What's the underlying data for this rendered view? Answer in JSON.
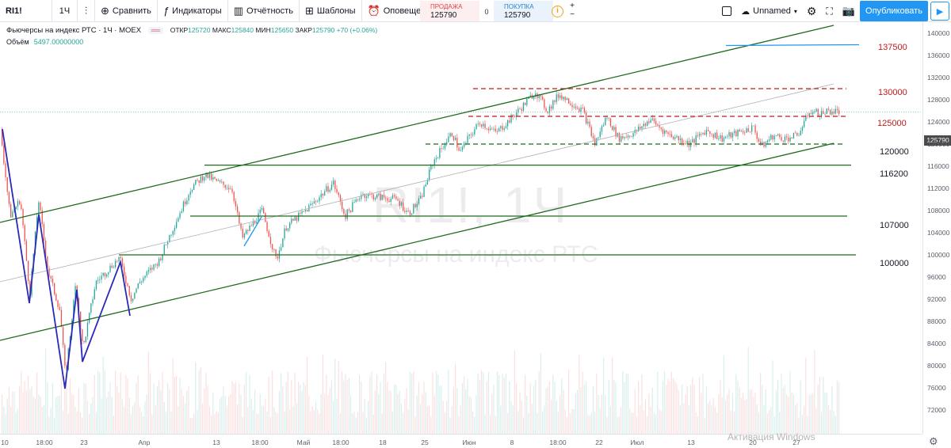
{
  "toolbar": {
    "symbol": "RI1!",
    "interval": "1Ч",
    "compare_label": "Сравнить",
    "indicators_label": "Индикаторы",
    "financials_label": "Отчётность",
    "templates_label": "Шаблоны",
    "alerts_label": "Оповещения",
    "trade": {
      "sell_label": "ПРОДАЖА",
      "sell_value": "125790",
      "spread": "0",
      "buy_label": "ПОКУПКА",
      "buy_value": "125790"
    },
    "layout_name": "Unnamed",
    "publish_label": "Опубликовать"
  },
  "legend": {
    "title": "Фьючерсы на индекс РТС · 1Ч · MOEX",
    "badge": "══",
    "open_label": "ОТКР",
    "open": "125720",
    "high_label": "МАКС",
    "high": "125840",
    "low_label": "МИН",
    "low": "125650",
    "close_label": "ЗАКР",
    "close": "125790",
    "change": "+70 (+0.06%)",
    "volume_label": "Объём",
    "volume": "5497.00000000"
  },
  "watermark": {
    "symbol_interval": "RI1!, 1Ч",
    "description": "Фьючерсы на индекс РТС"
  },
  "windows_notice": "Активация Windows",
  "price_scale": {
    "ticks": [
      "140000",
      "136000",
      "132000",
      "128000",
      "124000",
      "120000",
      "116000",
      "112000",
      "108000",
      "104000",
      "100000",
      "96000",
      "92000",
      "88000",
      "84000",
      "80000",
      "76000",
      "72000"
    ],
    "last_price": "125790"
  },
  "time_scale": {
    "ticks": [
      "10",
      "18:00",
      "23",
      "Апр",
      "13",
      "18:00",
      "Май",
      "18:00",
      "18",
      "25",
      "Июн",
      "8",
      "18:00",
      "22",
      "Июл",
      "13",
      "20",
      "27"
    ]
  },
  "levels": [
    {
      "label": "137500",
      "color": "#c21a1a"
    },
    {
      "label": "130000",
      "color": "#c21a1a"
    },
    {
      "label": "125000",
      "color": "#c21a1a"
    },
    {
      "label": "120000",
      "color": "#1a5c1a"
    },
    {
      "label": "116200",
      "color": "#1a5c1a"
    },
    {
      "label": "107000",
      "color": "#1a5c1a"
    },
    {
      "label": "100000",
      "color": "#1a5c1a"
    }
  ],
  "colors": {
    "up": "#26a69a",
    "down": "#ef5350",
    "channel": "#1e6b1e",
    "resistance": "#c21a1a",
    "accent": "#2196f3"
  },
  "icons": [
    "compare-icon",
    "indicators-icon",
    "financials-icon",
    "templates-icon",
    "alerts-icon",
    "camera-icon",
    "settings-icon",
    "fullscreen-icon"
  ]
}
